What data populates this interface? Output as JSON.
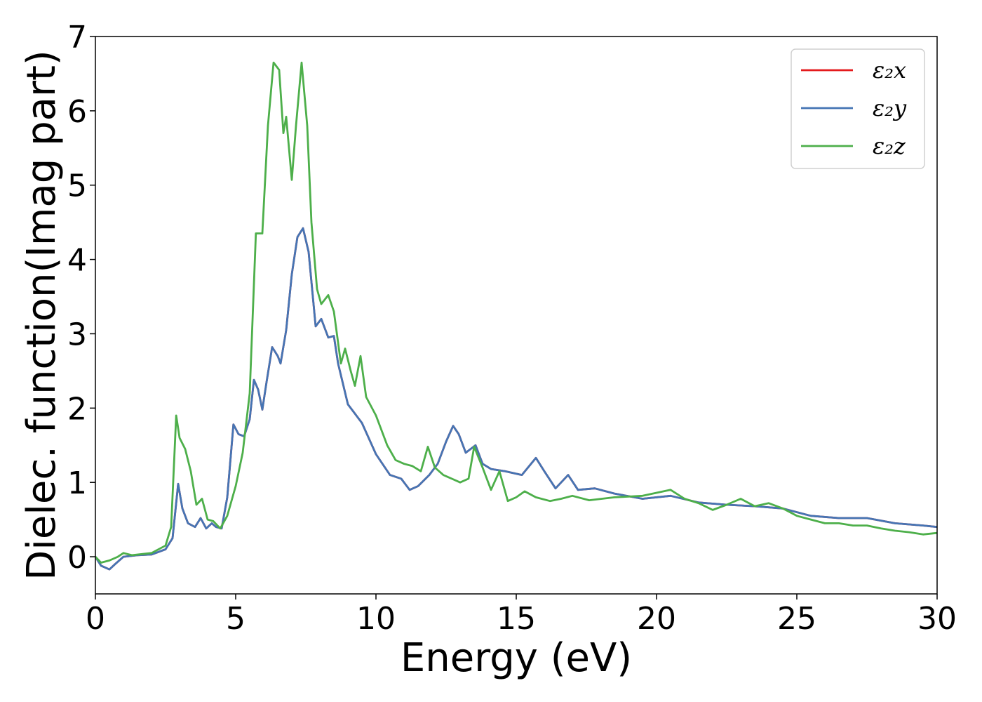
{
  "chart_data": {
    "type": "line",
    "xlabel": "Energy (eV)",
    "ylabel": "Dielec. function(Imag part)",
    "xlim": [
      0,
      30
    ],
    "ylim": [
      -0.5,
      7
    ],
    "xticks": [
      0,
      5,
      10,
      15,
      20,
      25,
      30
    ],
    "yticks": [
      0,
      1,
      2,
      3,
      4,
      5,
      6,
      7
    ],
    "grid": false,
    "legend_position": "top-right",
    "series": [
      {
        "name": "ε₂x",
        "color": "#e41a1c",
        "hidden_behind": "ε₂y",
        "points": [
          [
            0,
            0
          ],
          [
            0.2,
            -0.12
          ],
          [
            0.5,
            -0.17
          ],
          [
            0.7,
            -0.1
          ],
          [
            1,
            0
          ],
          [
            1.5,
            0.02
          ],
          [
            2,
            0.03
          ],
          [
            2.5,
            0.1
          ],
          [
            2.75,
            0.25
          ],
          [
            2.95,
            0.98
          ],
          [
            3.1,
            0.65
          ],
          [
            3.3,
            0.45
          ],
          [
            3.55,
            0.4
          ],
          [
            3.75,
            0.52
          ],
          [
            3.95,
            0.38
          ],
          [
            4.15,
            0.45
          ],
          [
            4.3,
            0.4
          ],
          [
            4.5,
            0.38
          ],
          [
            4.7,
            0.8
          ],
          [
            4.92,
            1.78
          ],
          [
            5.1,
            1.65
          ],
          [
            5.3,
            1.62
          ],
          [
            5.5,
            1.85
          ],
          [
            5.65,
            2.38
          ],
          [
            5.8,
            2.25
          ],
          [
            5.95,
            1.98
          ],
          [
            6.1,
            2.35
          ],
          [
            6.3,
            2.82
          ],
          [
            6.5,
            2.7
          ],
          [
            6.6,
            2.6
          ],
          [
            6.8,
            3.05
          ],
          [
            7,
            3.8
          ],
          [
            7.2,
            4.3
          ],
          [
            7.4,
            4.42
          ],
          [
            7.6,
            4.1
          ],
          [
            7.85,
            3.1
          ],
          [
            8.05,
            3.2
          ],
          [
            8.3,
            2.95
          ],
          [
            8.5,
            2.97
          ],
          [
            8.65,
            2.6
          ],
          [
            9,
            2.05
          ],
          [
            9.5,
            1.8
          ],
          [
            10,
            1.38
          ],
          [
            10.5,
            1.1
          ],
          [
            10.9,
            1.05
          ],
          [
            11.2,
            0.9
          ],
          [
            11.5,
            0.95
          ],
          [
            11.9,
            1.1
          ],
          [
            12.2,
            1.25
          ],
          [
            12.5,
            1.55
          ],
          [
            12.75,
            1.76
          ],
          [
            12.95,
            1.65
          ],
          [
            13.2,
            1.4
          ],
          [
            13.55,
            1.5
          ],
          [
            13.8,
            1.25
          ],
          [
            14.1,
            1.18
          ],
          [
            14.6,
            1.15
          ],
          [
            15.2,
            1.1
          ],
          [
            15.7,
            1.33
          ],
          [
            16,
            1.15
          ],
          [
            16.4,
            0.92
          ],
          [
            16.85,
            1.1
          ],
          [
            17.2,
            0.9
          ],
          [
            17.8,
            0.92
          ],
          [
            18.5,
            0.85
          ],
          [
            19.5,
            0.78
          ],
          [
            20.5,
            0.82
          ],
          [
            21.5,
            0.73
          ],
          [
            22.5,
            0.7
          ],
          [
            23.5,
            0.68
          ],
          [
            24.5,
            0.65
          ],
          [
            25.5,
            0.55
          ],
          [
            26.5,
            0.52
          ],
          [
            27.5,
            0.52
          ],
          [
            28.5,
            0.45
          ],
          [
            29.5,
            0.42
          ],
          [
            30,
            0.4
          ]
        ]
      },
      {
        "name": "ε₂y",
        "color": "#4575b4",
        "points": [
          [
            0,
            0
          ],
          [
            0.2,
            -0.12
          ],
          [
            0.5,
            -0.17
          ],
          [
            0.7,
            -0.1
          ],
          [
            1,
            0
          ],
          [
            1.5,
            0.02
          ],
          [
            2,
            0.03
          ],
          [
            2.5,
            0.1
          ],
          [
            2.75,
            0.25
          ],
          [
            2.95,
            0.98
          ],
          [
            3.1,
            0.65
          ],
          [
            3.3,
            0.45
          ],
          [
            3.55,
            0.4
          ],
          [
            3.75,
            0.52
          ],
          [
            3.95,
            0.38
          ],
          [
            4.15,
            0.45
          ],
          [
            4.3,
            0.4
          ],
          [
            4.5,
            0.38
          ],
          [
            4.7,
            0.8
          ],
          [
            4.92,
            1.78
          ],
          [
            5.1,
            1.65
          ],
          [
            5.3,
            1.62
          ],
          [
            5.5,
            1.85
          ],
          [
            5.65,
            2.38
          ],
          [
            5.8,
            2.25
          ],
          [
            5.95,
            1.98
          ],
          [
            6.1,
            2.35
          ],
          [
            6.3,
            2.82
          ],
          [
            6.5,
            2.7
          ],
          [
            6.6,
            2.6
          ],
          [
            6.8,
            3.05
          ],
          [
            7,
            3.8
          ],
          [
            7.2,
            4.3
          ],
          [
            7.4,
            4.42
          ],
          [
            7.6,
            4.1
          ],
          [
            7.85,
            3.1
          ],
          [
            8.05,
            3.2
          ],
          [
            8.3,
            2.95
          ],
          [
            8.5,
            2.97
          ],
          [
            8.65,
            2.6
          ],
          [
            9,
            2.05
          ],
          [
            9.5,
            1.8
          ],
          [
            10,
            1.38
          ],
          [
            10.5,
            1.1
          ],
          [
            10.9,
            1.05
          ],
          [
            11.2,
            0.9
          ],
          [
            11.5,
            0.95
          ],
          [
            11.9,
            1.1
          ],
          [
            12.2,
            1.25
          ],
          [
            12.5,
            1.55
          ],
          [
            12.75,
            1.76
          ],
          [
            12.95,
            1.65
          ],
          [
            13.2,
            1.4
          ],
          [
            13.55,
            1.5
          ],
          [
            13.8,
            1.25
          ],
          [
            14.1,
            1.18
          ],
          [
            14.6,
            1.15
          ],
          [
            15.2,
            1.1
          ],
          [
            15.7,
            1.33
          ],
          [
            16,
            1.15
          ],
          [
            16.4,
            0.92
          ],
          [
            16.85,
            1.1
          ],
          [
            17.2,
            0.9
          ],
          [
            17.8,
            0.92
          ],
          [
            18.5,
            0.85
          ],
          [
            19.5,
            0.78
          ],
          [
            20.5,
            0.82
          ],
          [
            21.5,
            0.73
          ],
          [
            22.5,
            0.7
          ],
          [
            23.5,
            0.68
          ],
          [
            24.5,
            0.65
          ],
          [
            25.5,
            0.55
          ],
          [
            26.5,
            0.52
          ],
          [
            27.5,
            0.52
          ],
          [
            28.5,
            0.45
          ],
          [
            29.5,
            0.42
          ],
          [
            30,
            0.4
          ]
        ]
      },
      {
        "name": "ε₂z",
        "color": "#4daf4a",
        "points": [
          [
            0,
            0
          ],
          [
            0.2,
            -0.08
          ],
          [
            0.5,
            -0.05
          ],
          [
            0.8,
            0
          ],
          [
            1,
            0.05
          ],
          [
            1.3,
            0.02
          ],
          [
            2,
            0.05
          ],
          [
            2.5,
            0.15
          ],
          [
            2.7,
            0.4
          ],
          [
            2.88,
            1.9
          ],
          [
            3,
            1.6
          ],
          [
            3.2,
            1.45
          ],
          [
            3.4,
            1.15
          ],
          [
            3.6,
            0.7
          ],
          [
            3.8,
            0.78
          ],
          [
            4,
            0.5
          ],
          [
            4.2,
            0.48
          ],
          [
            4.45,
            0.38
          ],
          [
            4.7,
            0.55
          ],
          [
            5,
            0.95
          ],
          [
            5.25,
            1.4
          ],
          [
            5.5,
            2.2
          ],
          [
            5.72,
            4.35
          ],
          [
            5.95,
            4.35
          ],
          [
            6.15,
            5.8
          ],
          [
            6.35,
            6.65
          ],
          [
            6.55,
            6.55
          ],
          [
            6.7,
            5.7
          ],
          [
            6.8,
            5.92
          ],
          [
            7,
            5.07
          ],
          [
            7.15,
            5.8
          ],
          [
            7.35,
            6.65
          ],
          [
            7.55,
            5.8
          ],
          [
            7.7,
            4.5
          ],
          [
            7.9,
            3.6
          ],
          [
            8.05,
            3.4
          ],
          [
            8.3,
            3.52
          ],
          [
            8.5,
            3.3
          ],
          [
            8.75,
            2.6
          ],
          [
            8.9,
            2.8
          ],
          [
            9.1,
            2.5
          ],
          [
            9.25,
            2.3
          ],
          [
            9.45,
            2.7
          ],
          [
            9.65,
            2.15
          ],
          [
            10,
            1.9
          ],
          [
            10.4,
            1.5
          ],
          [
            10.7,
            1.3
          ],
          [
            11,
            1.25
          ],
          [
            11.3,
            1.22
          ],
          [
            11.6,
            1.15
          ],
          [
            11.85,
            1.48
          ],
          [
            12.1,
            1.2
          ],
          [
            12.4,
            1.1
          ],
          [
            12.7,
            1.05
          ],
          [
            13,
            1.0
          ],
          [
            13.3,
            1.05
          ],
          [
            13.5,
            1.48
          ],
          [
            13.8,
            1.2
          ],
          [
            14.1,
            0.9
          ],
          [
            14.4,
            1.15
          ],
          [
            14.7,
            0.75
          ],
          [
            15,
            0.8
          ],
          [
            15.3,
            0.88
          ],
          [
            15.7,
            0.8
          ],
          [
            16.2,
            0.75
          ],
          [
            16.6,
            0.78
          ],
          [
            17,
            0.82
          ],
          [
            17.6,
            0.76
          ],
          [
            18.5,
            0.8
          ],
          [
            19.5,
            0.82
          ],
          [
            20.5,
            0.9
          ],
          [
            21,
            0.78
          ],
          [
            21.5,
            0.72
          ],
          [
            22,
            0.63
          ],
          [
            22.5,
            0.7
          ],
          [
            23,
            0.78
          ],
          [
            23.5,
            0.68
          ],
          [
            24,
            0.72
          ],
          [
            24.5,
            0.65
          ],
          [
            25,
            0.55
          ],
          [
            25.5,
            0.5
          ],
          [
            26,
            0.45
          ],
          [
            26.5,
            0.45
          ],
          [
            27,
            0.42
          ],
          [
            27.5,
            0.42
          ],
          [
            28,
            0.38
          ],
          [
            28.5,
            0.35
          ],
          [
            29,
            0.33
          ],
          [
            29.5,
            0.3
          ],
          [
            30,
            0.32
          ]
        ]
      }
    ]
  }
}
